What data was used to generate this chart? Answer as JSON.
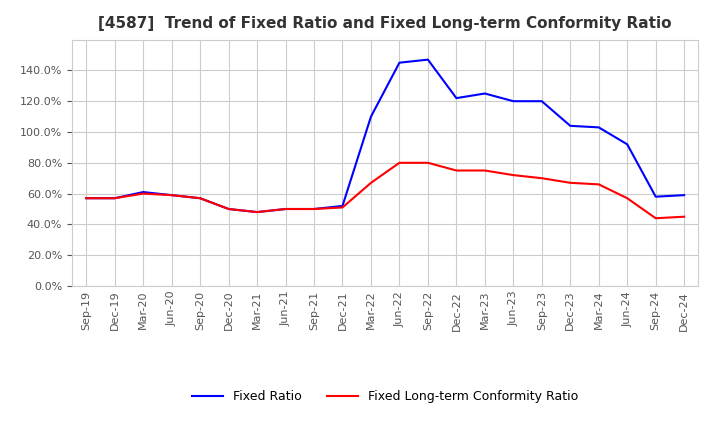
{
  "title": "[4587]  Trend of Fixed Ratio and Fixed Long-term Conformity Ratio",
  "x_labels": [
    "Sep-19",
    "Dec-19",
    "Mar-20",
    "Jun-20",
    "Sep-20",
    "Dec-20",
    "Mar-21",
    "Jun-21",
    "Sep-21",
    "Dec-21",
    "Mar-22",
    "Jun-22",
    "Sep-22",
    "Dec-22",
    "Mar-23",
    "Jun-23",
    "Sep-23",
    "Dec-23",
    "Mar-24",
    "Jun-24",
    "Sep-24",
    "Dec-24"
  ],
  "fixed_ratio": [
    57,
    57,
    61,
    59,
    57,
    50,
    48,
    50,
    50,
    52,
    110,
    145,
    147,
    122,
    125,
    120,
    120,
    104,
    103,
    92,
    58,
    59
  ],
  "fixed_lt_conformity": [
    57,
    57,
    60,
    59,
    57,
    50,
    48,
    50,
    50,
    51,
    67,
    80,
    80,
    75,
    75,
    72,
    70,
    67,
    66,
    57,
    44,
    45
  ],
  "ylim": [
    0,
    160
  ],
  "yticks": [
    0,
    20,
    40,
    60,
    80,
    100,
    120,
    140
  ],
  "fixed_ratio_color": "#0000ff",
  "fixed_lt_color": "#ff0000",
  "background_color": "#ffffff",
  "grid_color": "#cccccc",
  "legend_fixed_ratio": "Fixed Ratio",
  "legend_fixed_lt": "Fixed Long-term Conformity Ratio",
  "title_fontsize": 11,
  "tick_fontsize": 8,
  "legend_fontsize": 9
}
